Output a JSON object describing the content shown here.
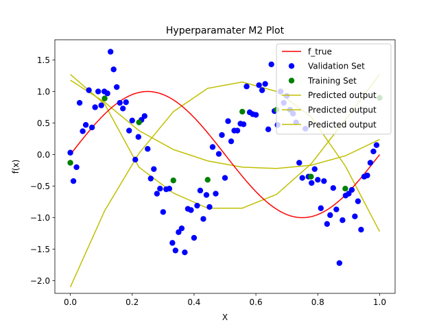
{
  "chart_data": {
    "type": "scatter",
    "title": "Hyperparamater M2 Plot",
    "xlabel": "X",
    "ylabel": "f(x)",
    "xlim": [
      -0.05,
      1.05
    ],
    "ylim": [
      -2.2,
      1.82
    ],
    "xticks": [
      0.0,
      0.2,
      0.4,
      0.6,
      0.8,
      1.0
    ],
    "xtick_labels": [
      "0.0",
      "0.2",
      "0.4",
      "0.6",
      "0.8",
      "1.0"
    ],
    "yticks": [
      -2.0,
      -1.5,
      -1.0,
      -0.5,
      0.0,
      0.5,
      1.0,
      1.5
    ],
    "ytick_labels": [
      "−2.0",
      "−1.5",
      "−1.0",
      "−0.5",
      "0.0",
      "0.5",
      "1.0",
      "1.5"
    ],
    "grid": false,
    "legend_position": "top-right",
    "colors": {
      "f_true": "#ff0000",
      "validation": "#0000ff",
      "training": "#008000",
      "predicted": "#bfbf00"
    },
    "legend": [
      {
        "label": "f_true",
        "kind": "line",
        "color": "#ff0000"
      },
      {
        "label": "Validation Set",
        "kind": "marker",
        "color": "#0000ff"
      },
      {
        "label": "Training Set",
        "kind": "marker",
        "color": "#008000"
      },
      {
        "label": "Predicted output",
        "kind": "line",
        "color": "#bfbf00"
      },
      {
        "label": "Predicted output",
        "kind": "line",
        "color": "#bfbf00"
      },
      {
        "label": "Predicted output",
        "kind": "line",
        "color": "#bfbf00"
      }
    ],
    "f_true": {
      "name": "f_true",
      "function": "sin(2*pi*x)",
      "x_range": [
        0.0,
        1.0
      ]
    },
    "validation_set": {
      "name": "Validation Set",
      "points": [
        [
          0.0,
          0.03
        ],
        [
          0.01,
          -0.42
        ],
        [
          0.02,
          -0.2
        ],
        [
          0.03,
          0.82
        ],
        [
          0.04,
          0.37
        ],
        [
          0.05,
          0.47
        ],
        [
          0.06,
          1.02
        ],
        [
          0.07,
          0.43
        ],
        [
          0.08,
          0.75
        ],
        [
          0.09,
          1.0
        ],
        [
          0.1,
          0.78
        ],
        [
          0.11,
          1.0
        ],
        [
          0.12,
          0.97
        ],
        [
          0.13,
          1.63
        ],
        [
          0.14,
          1.35
        ],
        [
          0.15,
          1.07
        ],
        [
          0.16,
          0.82
        ],
        [
          0.17,
          0.73
        ],
        [
          0.18,
          0.83
        ],
        [
          0.19,
          0.38
        ],
        [
          0.2,
          0.54
        ],
        [
          0.21,
          -0.08
        ],
        [
          0.22,
          0.28
        ],
        [
          0.23,
          0.55
        ],
        [
          0.24,
          0.61
        ],
        [
          0.25,
          0.09
        ],
        [
          0.26,
          -0.38
        ],
        [
          0.27,
          -0.23
        ],
        [
          0.28,
          -0.62
        ],
        [
          0.29,
          -0.54
        ],
        [
          0.3,
          -0.91
        ],
        [
          0.31,
          -0.55
        ],
        [
          0.32,
          -0.54
        ],
        [
          0.33,
          -1.4
        ],
        [
          0.34,
          -1.52
        ],
        [
          0.35,
          -1.23
        ],
        [
          0.36,
          -1.17
        ],
        [
          0.37,
          -1.55
        ],
        [
          0.38,
          -0.86
        ],
        [
          0.39,
          -0.88
        ],
        [
          0.4,
          -1.32
        ],
        [
          0.41,
          -0.81
        ],
        [
          0.42,
          -0.57
        ],
        [
          0.43,
          -1.02
        ],
        [
          0.44,
          -0.64
        ],
        [
          0.45,
          -0.83
        ],
        [
          0.46,
          0.12
        ],
        [
          0.47,
          -0.62
        ],
        [
          0.48,
          0.01
        ],
        [
          0.49,
          0.31
        ],
        [
          0.5,
          -0.37
        ],
        [
          0.51,
          0.53
        ],
        [
          0.52,
          0.21
        ],
        [
          0.53,
          0.38
        ],
        [
          0.54,
          0.38
        ],
        [
          0.55,
          0.49
        ],
        [
          0.56,
          0.48
        ],
        [
          0.57,
          1.08
        ],
        [
          0.58,
          0.67
        ],
        [
          0.59,
          0.64
        ],
        [
          0.6,
          0.63
        ],
        [
          0.61,
          1.1
        ],
        [
          0.62,
          1.02
        ],
        [
          0.63,
          1.12
        ],
        [
          0.64,
          0.4
        ],
        [
          0.65,
          1.43
        ],
        [
          0.66,
          0.69
        ],
        [
          0.67,
          0.47
        ],
        [
          0.68,
          1.0
        ],
        [
          0.69,
          0.82
        ],
        [
          0.7,
          0.93
        ],
        [
          0.71,
          0.71
        ],
        [
          0.72,
          0.65
        ],
        [
          0.73,
          0.51
        ],
        [
          0.74,
          -0.13
        ],
        [
          0.75,
          -0.37
        ],
        [
          0.76,
          0.41
        ],
        [
          0.77,
          -0.35
        ],
        [
          0.78,
          -0.45
        ],
        [
          0.79,
          -0.23
        ],
        [
          0.8,
          -0.4
        ],
        [
          0.81,
          -0.85
        ],
        [
          0.82,
          -0.42
        ],
        [
          0.83,
          -1.1
        ],
        [
          0.84,
          -0.96
        ],
        [
          0.85,
          -0.53
        ],
        [
          0.86,
          -0.87
        ],
        [
          0.87,
          -1.72
        ],
        [
          0.88,
          -1.04
        ],
        [
          0.89,
          -0.65
        ],
        [
          0.9,
          -0.62
        ],
        [
          0.91,
          -0.56
        ],
        [
          0.92,
          -0.98
        ],
        [
          0.93,
          -0.74
        ],
        [
          0.94,
          -1.19
        ],
        [
          0.95,
          -0.35
        ],
        [
          0.96,
          -0.33
        ],
        [
          0.97,
          -0.13
        ],
        [
          0.98,
          0.05
        ],
        [
          0.99,
          0.15
        ]
      ]
    },
    "training_set": {
      "name": "Training Set",
      "points": [
        [
          0.0,
          -0.13
        ],
        [
          0.111,
          0.89
        ],
        [
          0.222,
          0.51
        ],
        [
          0.333,
          -0.41
        ],
        [
          0.444,
          -0.4
        ],
        [
          0.556,
          0.68
        ],
        [
          0.667,
          0.71
        ],
        [
          0.778,
          -0.35
        ],
        [
          0.889,
          -0.54
        ],
        [
          1.0,
          0.9
        ]
      ]
    },
    "predicted_outputs": [
      {
        "name": "Predicted output",
        "points": [
          [
            0.0,
            1.27
          ],
          [
            0.111,
            0.8
          ],
          [
            0.222,
            -0.2
          ],
          [
            0.333,
            -0.61
          ],
          [
            0.444,
            -0.85
          ],
          [
            0.556,
            -0.85
          ],
          [
            0.667,
            -0.63
          ],
          [
            0.778,
            -0.15
          ],
          [
            0.889,
            0.55
          ],
          [
            1.0,
            1.27
          ]
        ]
      },
      {
        "name": "Predicted output",
        "points": [
          [
            0.0,
            -2.1
          ],
          [
            0.111,
            -0.89
          ],
          [
            0.222,
            0.02
          ],
          [
            0.333,
            0.68
          ],
          [
            0.444,
            1.05
          ],
          [
            0.556,
            1.15
          ],
          [
            0.667,
            1.0
          ],
          [
            0.778,
            0.6
          ],
          [
            0.889,
            -0.18
          ],
          [
            1.0,
            -1.22
          ]
        ]
      },
      {
        "name": "Predicted output",
        "points": [
          [
            0.0,
            1.18
          ],
          [
            0.111,
            0.83
          ],
          [
            0.222,
            0.38
          ],
          [
            0.333,
            0.08
          ],
          [
            0.444,
            -0.1
          ],
          [
            0.556,
            -0.2
          ],
          [
            0.667,
            -0.22
          ],
          [
            0.778,
            -0.17
          ],
          [
            0.889,
            -0.02
          ],
          [
            1.0,
            0.24
          ]
        ]
      }
    ]
  }
}
